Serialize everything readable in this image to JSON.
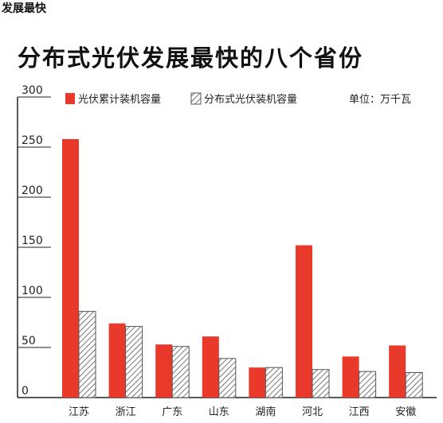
{
  "page": {
    "caption": "发展最快"
  },
  "colors": {
    "accent": "#e8392b",
    "hatch": "#555555"
  },
  "chart_data": {
    "type": "bar",
    "title": "分布式光伏发展最快的八个省份",
    "unit": "单位：万千瓦",
    "categories": [
      "江苏",
      "浙江",
      "广东",
      "山东",
      "湖南",
      "河北",
      "江西",
      "安徽"
    ],
    "series": [
      {
        "name": "光伏累计装机容量",
        "style": "solid",
        "values": [
          258,
          74,
          53,
          61,
          30,
          152,
          41,
          52
        ]
      },
      {
        "name": "分布式光伏装机容量",
        "style": "hatched",
        "values": [
          86,
          71,
          51,
          39,
          30,
          28,
          26,
          25
        ]
      }
    ],
    "y_ticks": [
      "300",
      "250",
      "200",
      "150",
      "100",
      "50",
      "0"
    ],
    "ylim": [
      0,
      300
    ],
    "legend_position": "top",
    "grid": false
  }
}
